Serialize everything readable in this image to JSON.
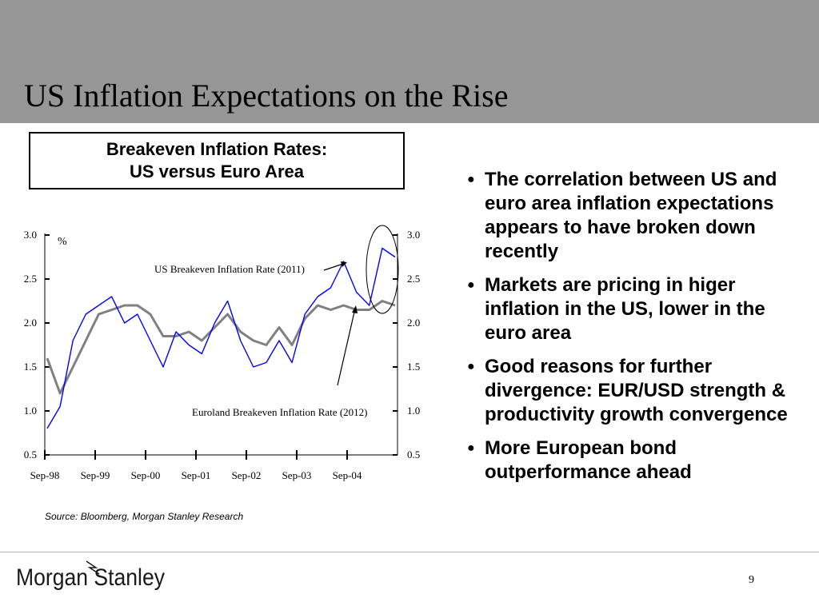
{
  "slide": {
    "title": "US Inflation Expectations on the Rise",
    "page_number": "9",
    "logo_text": "Morgan Stanley"
  },
  "chart_box": {
    "line1": "Breakeven Inflation Rates:",
    "line2": "US versus Euro Area"
  },
  "source": "Source: Bloomberg, Morgan Stanley Research",
  "bullets": [
    "The correlation between US and euro area inflation expectations appears to have broken down recently",
    "Markets are pricing in higer inflation in the US, lower in the euro area",
    "Good reasons for further divergence: EUR/USD strength &  productivity growth convergence",
    "More European bond outperformance ahead"
  ],
  "colors": {
    "header": "#969696",
    "us_series": "#0000ff",
    "euro_series": "#808080"
  },
  "chart_data": {
    "type": "line",
    "ylabel": "%",
    "ylim": [
      0.5,
      3.0
    ],
    "yticks": [
      "0.5",
      "1.0",
      "1.5",
      "2.0",
      "2.5",
      "3.0"
    ],
    "xticks": [
      "Sep-98",
      "Sep-99",
      "Sep-00",
      "Sep-01",
      "Sep-02",
      "Sep-03",
      "Sep-04"
    ],
    "x": [
      "Sep-98",
      "Dec-98",
      "Mar-99",
      "Jun-99",
      "Sep-99",
      "Dec-99",
      "Mar-00",
      "Jun-00",
      "Sep-00",
      "Dec-00",
      "Mar-01",
      "Jun-01",
      "Sep-01",
      "Dec-01",
      "Mar-02",
      "Jun-02",
      "Sep-02",
      "Dec-02",
      "Mar-03",
      "Jun-03",
      "Sep-03",
      "Dec-03",
      "Mar-04",
      "Jun-04",
      "Sep-04",
      "Dec-04",
      "Mar-05",
      "May-05"
    ],
    "series": [
      {
        "name": "US Breakeven Inflation Rate (2011)",
        "values": [
          0.8,
          1.05,
          1.8,
          2.1,
          2.2,
          2.3,
          2.0,
          2.1,
          1.8,
          1.5,
          1.9,
          1.75,
          1.65,
          2.0,
          2.25,
          1.8,
          1.5,
          1.55,
          1.8,
          1.55,
          2.1,
          2.3,
          2.4,
          2.7,
          2.35,
          2.2,
          2.85,
          2.75
        ]
      },
      {
        "name": "Euroland Breakeven Inflation Rate (2012)",
        "values": [
          1.6,
          1.2,
          1.5,
          1.8,
          2.1,
          2.15,
          2.2,
          2.2,
          2.1,
          1.85,
          1.85,
          1.9,
          1.8,
          1.95,
          2.1,
          1.9,
          1.8,
          1.75,
          1.95,
          1.75,
          2.05,
          2.2,
          2.15,
          2.2,
          2.15,
          2.15,
          2.25,
          2.2
        ]
      }
    ],
    "annotations": [
      "US Breakeven Inflation Rate (2011)",
      "Euroland Breakeven Inflation Rate (2012)"
    ],
    "legend": "none",
    "grid": false
  }
}
